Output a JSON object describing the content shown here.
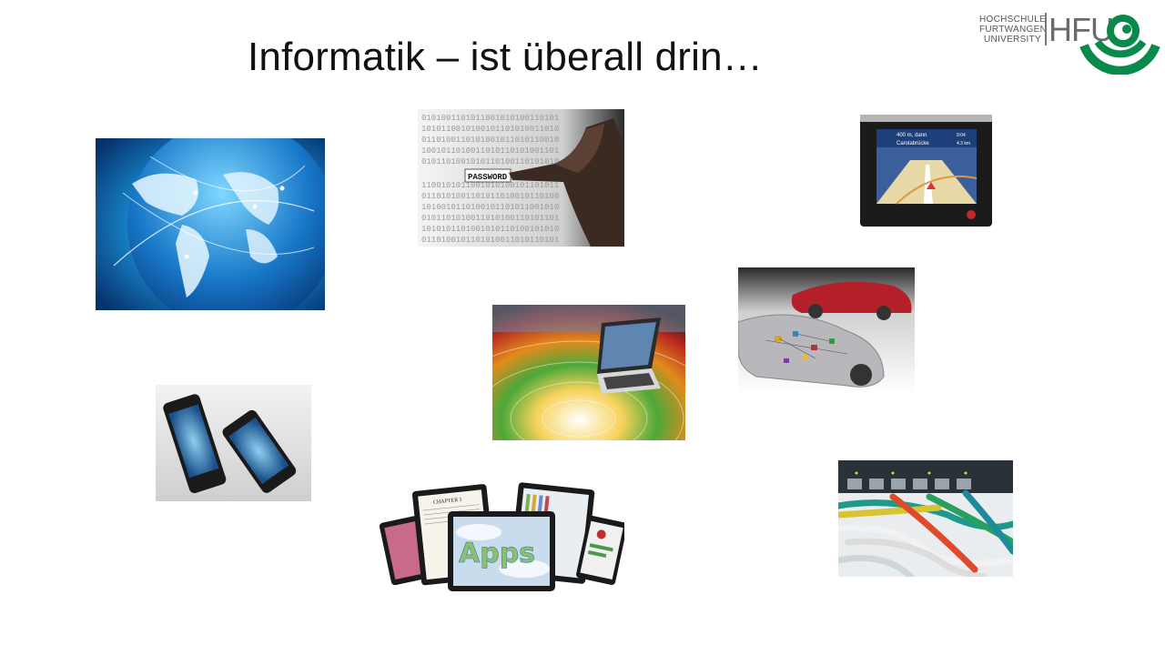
{
  "slide": {
    "title": "Informatik – ist überall drin…"
  },
  "logo": {
    "university_lines": [
      "HOCHSCHULE",
      "FURTWANGEN",
      "UNIVERSITY"
    ],
    "short": "HFU",
    "brand_color": "#0a8a4a"
  },
  "images": {
    "password": {
      "label": "PASSWORD"
    },
    "navigation": {
      "line1": "400 m, dann",
      "line2": "Carolabrücke",
      "time": "9:04",
      "dist": "4.3 km"
    },
    "tablets": {
      "chapter": "CHAPTER 1",
      "apps": "Apps"
    }
  }
}
